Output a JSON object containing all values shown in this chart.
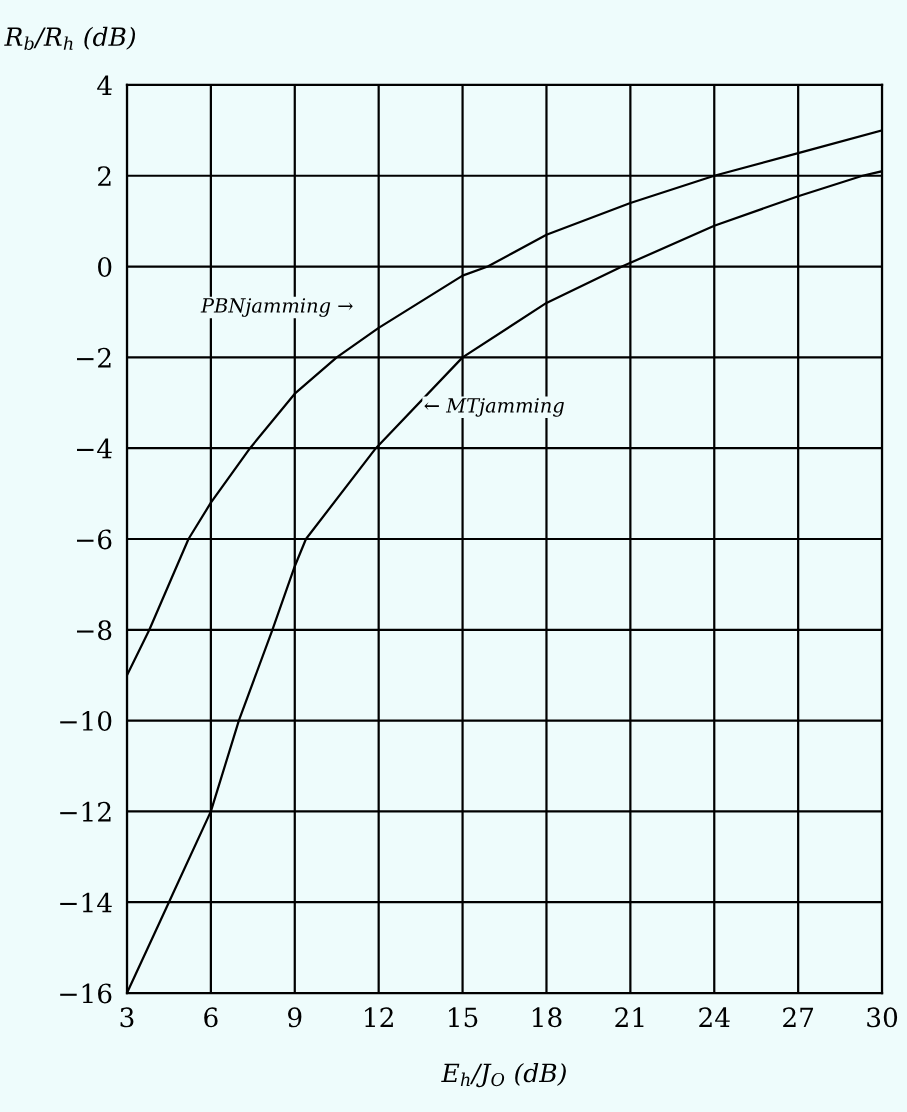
{
  "chart_data": {
    "type": "line",
    "xlabel": "E$_{h}$/J$_{O}$ (dB)",
    "ylabel": "R$_{b}$/R$_{h}$ (dB)",
    "series": [
      {
        "color": "#000000",
        "x": [
          3,
          3.8,
          5.2,
          6,
          7.4,
          9,
          10.5,
          12,
          15,
          15.9,
          18,
          21,
          24,
          27,
          30
        ],
        "values": [
          -9.0,
          -8,
          -6,
          -5.2,
          -4,
          -2.8,
          -2,
          -1.35,
          -0.2,
          0,
          0.7,
          1.4,
          2.0,
          2.5,
          3.0
        ]
      },
      {
        "color": "#000000",
        "x": [
          3,
          4.5,
          6,
          7,
          8.2,
          9,
          9.4,
          11.9,
          15,
          18,
          20.7,
          24,
          27,
          29.3,
          30
        ],
        "values": [
          -16,
          -14,
          -12,
          -10,
          -8,
          -6.6,
          -6,
          -4,
          -2,
          -0.8,
          0,
          0.9,
          1.55,
          2,
          2.1
        ]
      }
    ],
    "annotations": [
      "PBNjamming →",
      "← MTjamming"
    ],
    "xlim": [
      3,
      30
    ],
    "xticks": [
      3,
      6,
      9,
      12,
      15,
      18,
      21,
      24,
      27,
      30
    ],
    "ylim": [
      -16,
      4
    ],
    "yticks": [
      -16,
      -14,
      -12,
      -10,
      -8,
      -6,
      -4,
      -2,
      0,
      2,
      4
    ],
    "grid": true,
    "line_style": "solid",
    "marker": "none"
  }
}
